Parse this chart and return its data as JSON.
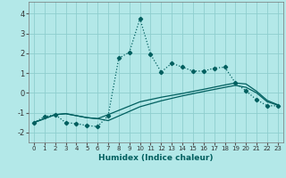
{
  "xlabel": "Humidex (Indice chaleur)",
  "bg_color": "#b3e8e8",
  "line_color": "#005f5f",
  "grid_color": "#8ecece",
  "xlim": [
    -0.5,
    23.5
  ],
  "ylim": [
    -2.5,
    4.6
  ],
  "xticks": [
    0,
    1,
    2,
    3,
    4,
    5,
    6,
    7,
    8,
    9,
    10,
    11,
    12,
    13,
    14,
    15,
    16,
    17,
    18,
    19,
    20,
    21,
    22,
    23
  ],
  "yticks": [
    -2,
    -1,
    0,
    1,
    2,
    3,
    4
  ],
  "series1_x": [
    0,
    1,
    2,
    3,
    4,
    5,
    6,
    7,
    8,
    9,
    10,
    11,
    12,
    13,
    14,
    15,
    16,
    17,
    18,
    19,
    20,
    21,
    22,
    23
  ],
  "series1_y": [
    -1.5,
    -1.2,
    -1.1,
    -1.5,
    -1.55,
    -1.65,
    -1.7,
    -1.15,
    1.75,
    2.05,
    3.75,
    1.95,
    1.05,
    1.5,
    1.3,
    1.1,
    1.1,
    1.25,
    1.3,
    0.5,
    0.1,
    -0.35,
    -0.65,
    -0.65
  ],
  "series2_x": [
    0,
    2,
    3,
    5,
    6,
    7,
    10,
    12,
    14,
    16,
    18,
    19,
    20,
    21,
    22,
    23
  ],
  "series2_y": [
    -1.5,
    -1.1,
    -1.05,
    -1.25,
    -1.3,
    -1.1,
    -0.45,
    -0.22,
    -0.03,
    0.18,
    0.4,
    0.5,
    0.45,
    0.08,
    -0.38,
    -0.6
  ],
  "series3_x": [
    0,
    2,
    3,
    5,
    6,
    7,
    10,
    12,
    14,
    16,
    18,
    19,
    20,
    21,
    22,
    23
  ],
  "series3_y": [
    -1.5,
    -1.1,
    -1.05,
    -1.25,
    -1.3,
    -1.4,
    -0.7,
    -0.4,
    -0.15,
    0.07,
    0.28,
    0.38,
    0.28,
    0.0,
    -0.45,
    -0.62
  ]
}
